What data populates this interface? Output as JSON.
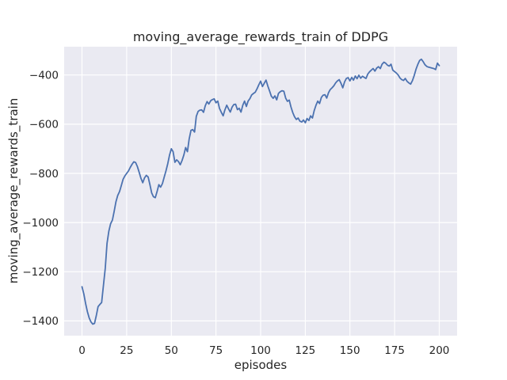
{
  "figure": {
    "title": "moving_average_rewards_train of DDPG",
    "xlabel": "episodes",
    "ylabel": "moving_average_rewards_train"
  },
  "chart_data": {
    "type": "line",
    "title": "moving_average_rewards_train of DDPG",
    "xlabel": "episodes",
    "ylabel": "moving_average_rewards_train",
    "grid": true,
    "legend": false,
    "style": "seaborn-darkgrid",
    "plot_bg_color": "#eaeaf2",
    "grid_color": "#ffffff",
    "text_color": "#262626",
    "xlim": [
      -10,
      210
    ],
    "ylim": [
      -1460,
      -285
    ],
    "xticks": [
      0,
      25,
      50,
      75,
      100,
      125,
      150,
      175,
      200
    ],
    "xtick_labels": [
      "0",
      "25",
      "50",
      "75",
      "100",
      "125",
      "150",
      "175",
      "200"
    ],
    "yticks": [
      -400,
      -600,
      -800,
      -1000,
      -1200,
      -1400
    ],
    "ytick_labels": [
      "−400",
      "−600",
      "−800",
      "−1000",
      "−1200",
      "−1400"
    ],
    "series": [
      {
        "name": "moving_average_rewards_train",
        "color": "#4c72b0",
        "line_width": 1.8,
        "x_start": 0,
        "x_step": 1,
        "y": [
          -1261,
          -1290,
          -1330,
          -1362,
          -1388,
          -1404,
          -1413,
          -1410,
          -1378,
          -1342,
          -1333,
          -1325,
          -1255,
          -1185,
          -1085,
          -1035,
          -1005,
          -990,
          -955,
          -915,
          -890,
          -874,
          -850,
          -824,
          -810,
          -800,
          -790,
          -776,
          -763,
          -753,
          -756,
          -772,
          -796,
          -820,
          -838,
          -818,
          -808,
          -815,
          -845,
          -880,
          -895,
          -899,
          -875,
          -846,
          -856,
          -842,
          -815,
          -790,
          -760,
          -726,
          -700,
          -712,
          -755,
          -745,
          -752,
          -765,
          -748,
          -725,
          -695,
          -712,
          -660,
          -625,
          -622,
          -632,
          -568,
          -548,
          -543,
          -542,
          -552,
          -525,
          -508,
          -518,
          -505,
          -500,
          -497,
          -513,
          -506,
          -536,
          -552,
          -566,
          -542,
          -523,
          -537,
          -551,
          -531,
          -520,
          -519,
          -541,
          -535,
          -551,
          -523,
          -506,
          -528,
          -506,
          -496,
          -481,
          -475,
          -470,
          -456,
          -440,
          -425,
          -447,
          -434,
          -421,
          -444,
          -465,
          -486,
          -495,
          -485,
          -501,
          -475,
          -468,
          -464,
          -466,
          -494,
          -507,
          -502,
          -530,
          -553,
          -570,
          -581,
          -575,
          -588,
          -591,
          -583,
          -594,
          -577,
          -585,
          -566,
          -575,
          -545,
          -523,
          -506,
          -516,
          -491,
          -482,
          -480,
          -494,
          -472,
          -459,
          -452,
          -444,
          -432,
          -424,
          -419,
          -434,
          -452,
          -428,
          -414,
          -411,
          -424,
          -410,
          -421,
          -404,
          -415,
          -401,
          -413,
          -405,
          -410,
          -414,
          -396,
          -387,
          -380,
          -374,
          -384,
          -372,
          -366,
          -374,
          -356,
          -348,
          -352,
          -360,
          -364,
          -356,
          -380,
          -386,
          -392,
          -400,
          -412,
          -419,
          -422,
          -414,
          -426,
          -432,
          -437,
          -423,
          -402,
          -377,
          -357,
          -341,
          -336,
          -346,
          -358,
          -365,
          -368,
          -370,
          -372,
          -374,
          -378,
          -352,
          -362
        ]
      }
    ]
  }
}
